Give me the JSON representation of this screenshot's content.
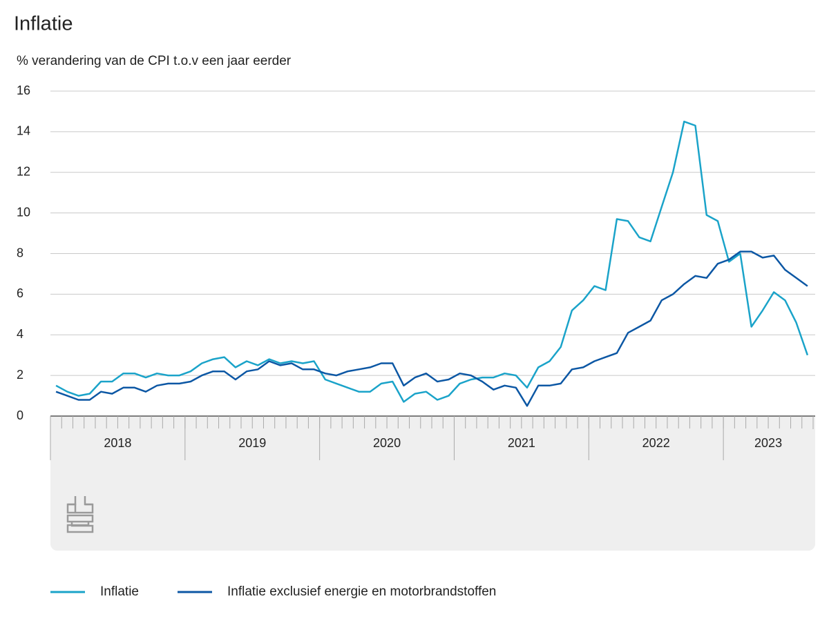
{
  "chart_data": {
    "type": "line",
    "title": "Inflatie",
    "subtitle": "% verandering van de CPI t.o.v een jaar eerder",
    "categories": [
      "2018",
      "2018",
      "2018",
      "2018",
      "2018",
      "2018",
      "2018",
      "2018",
      "2018",
      "2018",
      "2018",
      "2018",
      "2019",
      "2019",
      "2019",
      "2019",
      "2019",
      "2019",
      "2019",
      "2019",
      "2019",
      "2019",
      "2019",
      "2019",
      "2020",
      "2020",
      "2020",
      "2020",
      "2020",
      "2020",
      "2020",
      "2020",
      "2020",
      "2020",
      "2020",
      "2020",
      "2021",
      "2021",
      "2021",
      "2021",
      "2021",
      "2021",
      "2021",
      "2021",
      "2021",
      "2021",
      "2021",
      "2021",
      "2022",
      "2022",
      "2022",
      "2022",
      "2022",
      "2022",
      "2022",
      "2022",
      "2022",
      "2022",
      "2022",
      "2022",
      "2023",
      "2023",
      "2023",
      "2023",
      "2023",
      "2023",
      "2023",
      "2023"
    ],
    "series": [
      {
        "name": "Inflatie",
        "color": "#1aa3c9",
        "values": [
          1.5,
          1.2,
          1.0,
          1.1,
          1.7,
          1.7,
          2.1,
          2.1,
          1.9,
          2.1,
          2.0,
          2.0,
          2.2,
          2.6,
          2.8,
          2.9,
          2.4,
          2.7,
          2.5,
          2.8,
          2.6,
          2.7,
          2.6,
          2.7,
          1.8,
          1.6,
          1.4,
          1.2,
          1.2,
          1.6,
          1.7,
          0.7,
          1.1,
          1.2,
          0.8,
          1.0,
          1.6,
          1.8,
          1.9,
          1.9,
          2.1,
          2.0,
          1.4,
          2.4,
          2.7,
          3.4,
          5.2,
          5.7,
          6.4,
          6.2,
          9.7,
          9.6,
          8.8,
          8.6,
          10.3,
          12.0,
          14.5,
          14.3,
          9.9,
          9.6,
          7.6,
          8.0,
          4.4,
          5.2,
          6.1,
          5.7,
          4.6,
          3.0
        ]
      },
      {
        "name": "Inflatie exclusief energie en motorbrandstoffen",
        "color": "#0c57a4",
        "values": [
          1.2,
          1.0,
          0.8,
          0.8,
          1.2,
          1.1,
          1.4,
          1.4,
          1.2,
          1.5,
          1.6,
          1.6,
          1.7,
          2.0,
          2.2,
          2.2,
          1.8,
          2.2,
          2.3,
          2.7,
          2.5,
          2.6,
          2.3,
          2.3,
          2.1,
          2.0,
          2.2,
          2.3,
          2.4,
          2.6,
          2.6,
          1.5,
          1.9,
          2.1,
          1.7,
          1.8,
          2.1,
          2.0,
          1.7,
          1.3,
          1.5,
          1.4,
          0.5,
          1.5,
          1.5,
          1.6,
          2.3,
          2.4,
          2.7,
          2.9,
          3.1,
          4.1,
          4.4,
          4.7,
          5.7,
          6.0,
          6.5,
          6.9,
          6.8,
          7.5,
          7.7,
          8.1,
          8.1,
          7.8,
          7.9,
          7.2,
          6.8,
          6.4
        ]
      }
    ],
    "ylim": [
      0,
      16
    ],
    "yticks": [
      0,
      2,
      4,
      6,
      8,
      10,
      12,
      14,
      16
    ],
    "grid": true,
    "legend": "bottom"
  }
}
